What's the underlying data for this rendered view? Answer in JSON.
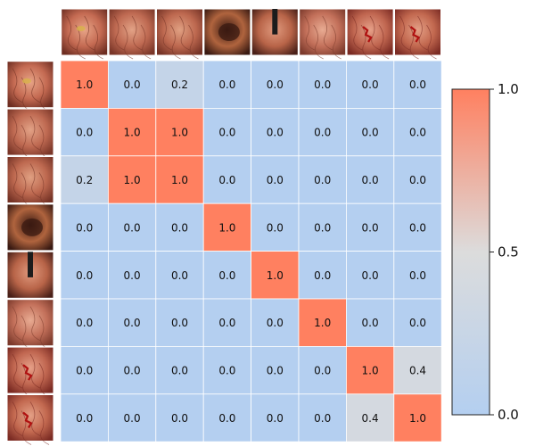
{
  "chart_data": {
    "type": "heatmap",
    "title": "",
    "xlabel": "",
    "ylabel": "",
    "row_labels": [
      "img-1",
      "img-2",
      "img-3",
      "img-4",
      "img-5",
      "img-6",
      "img-7",
      "img-8"
    ],
    "col_labels": [
      "img-1",
      "img-2",
      "img-3",
      "img-4",
      "img-5",
      "img-6",
      "img-7",
      "img-8"
    ],
    "values": [
      [
        1.0,
        0.0,
        0.2,
        0.0,
        0.0,
        0.0,
        0.0,
        0.0
      ],
      [
        0.0,
        1.0,
        1.0,
        0.0,
        0.0,
        0.0,
        0.0,
        0.0
      ],
      [
        0.2,
        1.0,
        1.0,
        0.0,
        0.0,
        0.0,
        0.0,
        0.0
      ],
      [
        0.0,
        0.0,
        0.0,
        1.0,
        0.0,
        0.0,
        0.0,
        0.0
      ],
      [
        0.0,
        0.0,
        0.0,
        0.0,
        1.0,
        0.0,
        0.0,
        0.0
      ],
      [
        0.0,
        0.0,
        0.0,
        0.0,
        0.0,
        1.0,
        0.0,
        0.0
      ],
      [
        0.0,
        0.0,
        0.0,
        0.0,
        0.0,
        0.0,
        1.0,
        0.4
      ],
      [
        0.0,
        0.0,
        0.0,
        0.0,
        0.0,
        0.0,
        0.4,
        1.0
      ]
    ],
    "value_format_decimals": 1,
    "colorbar": {
      "vmin": 0.0,
      "vmax": 1.0,
      "ticks": [
        0.0,
        0.5,
        1.0
      ],
      "tick_labels": [
        "0.0",
        "0.5",
        "1.0"
      ],
      "cmap": [
        "#b4cff0",
        "#dcdcdc",
        "#ff8060"
      ]
    },
    "thumbnails": [
      {
        "name": "esophagus-junction",
        "base": "#c46a52",
        "dark": "#6e2e22",
        "light": "#e7a487",
        "feature": "lesion"
      },
      {
        "name": "esophagus-vessels-a",
        "base": "#bf6a52",
        "dark": "#7a3628",
        "light": "#e2a286",
        "feature": "vessels"
      },
      {
        "name": "esophagus-vessels-b",
        "base": "#bd684f",
        "dark": "#753326",
        "light": "#e0a082",
        "feature": "vessels"
      },
      {
        "name": "stomach-lumen-dark",
        "base": "#b0643e",
        "dark": "#3a1a12",
        "light": "#d99a6a",
        "feature": "lumen"
      },
      {
        "name": "esophagus-scope",
        "base": "#b86448",
        "dark": "#4a2018",
        "light": "#e09a7e",
        "feature": "scope"
      },
      {
        "name": "esophagus-wall",
        "base": "#c3705a",
        "dark": "#7c3a2c",
        "light": "#e8ab92",
        "feature": "vessels"
      },
      {
        "name": "stomach-bleed-a",
        "base": "#c06650",
        "dark": "#7a2a22",
        "light": "#e6a088",
        "feature": "bleed"
      },
      {
        "name": "stomach-bleed-b",
        "base": "#c2684f",
        "dark": "#7c2c24",
        "light": "#e4a086",
        "feature": "bleed"
      }
    ]
  }
}
